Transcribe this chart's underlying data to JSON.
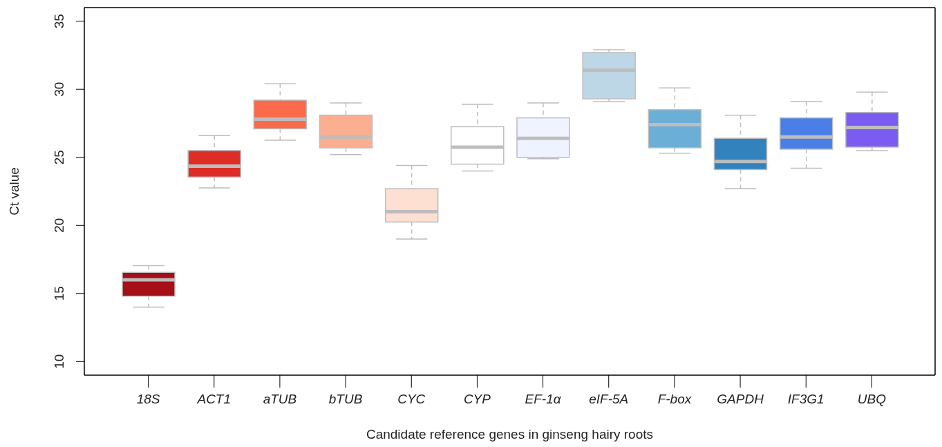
{
  "chart_data": {
    "type": "box",
    "xlabel": "Candidate reference genes in ginseng hairy roots",
    "ylabel": "Ct value",
    "categories": [
      "18S",
      "ACT1",
      "aTUB",
      "bTUB",
      "CYC",
      "CYP",
      "EF-1α",
      "eIF-5A",
      "F-box",
      "GAPDH",
      "IF3G1",
      "UBQ"
    ],
    "boxes": [
      {
        "low": 14.0,
        "q1": 14.8,
        "median": 16.0,
        "q3": 16.55,
        "high": 17.05
      },
      {
        "low": 22.75,
        "q1": 23.55,
        "median": 24.35,
        "q3": 25.5,
        "high": 26.6
      },
      {
        "low": 26.25,
        "q1": 27.1,
        "median": 27.8,
        "q3": 29.2,
        "high": 30.4
      },
      {
        "low": 25.2,
        "q1": 25.7,
        "median": 26.5,
        "q3": 28.1,
        "high": 29.0
      },
      {
        "low": 19.0,
        "q1": 20.25,
        "median": 21.0,
        "q3": 22.7,
        "high": 24.4
      },
      {
        "low": 24.0,
        "q1": 24.5,
        "median": 25.75,
        "q3": 27.25,
        "high": 28.9
      },
      {
        "low": 24.9,
        "q1": 25.0,
        "median": 26.4,
        "q3": 27.9,
        "high": 29.0
      },
      {
        "low": 29.1,
        "q1": 29.3,
        "median": 31.4,
        "q3": 32.7,
        "high": 32.9
      },
      {
        "low": 25.3,
        "q1": 25.7,
        "median": 27.4,
        "q3": 28.5,
        "high": 30.1
      },
      {
        "low": 22.7,
        "q1": 24.1,
        "median": 24.7,
        "q3": 26.4,
        "high": 28.1
      },
      {
        "low": 24.2,
        "q1": 25.6,
        "median": 26.5,
        "q3": 27.9,
        "high": 29.1
      },
      {
        "low": 25.5,
        "q1": 25.75,
        "median": 27.2,
        "q3": 28.3,
        "high": 29.8
      }
    ],
    "colors": [
      "#a50f15",
      "#de2d26",
      "#fb6a4a",
      "#fcae91",
      "#fee0d2",
      "#ffffff",
      "#eff3ff",
      "#bdd7e7",
      "#6baed6",
      "#3182bd",
      "#4a7fe8",
      "#7b5cf0"
    ],
    "ylim": [
      9,
      36
    ],
    "yticks": [
      10,
      15,
      20,
      25,
      30,
      35
    ]
  }
}
